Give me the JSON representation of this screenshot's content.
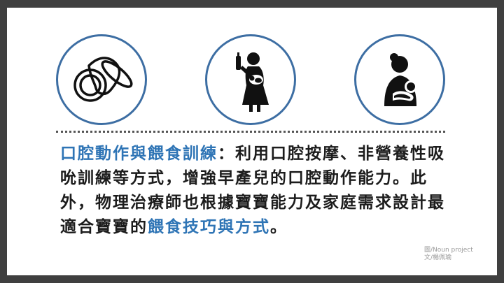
{
  "icons": [
    {
      "name": "pacifier-icon"
    },
    {
      "name": "mother-bottle-feeding-icon"
    },
    {
      "name": "breastfeeding-icon"
    }
  ],
  "paragraph": {
    "highlight_1": "口腔動作與餵食訓練",
    "text_1": "：利用口腔按摩、非營養性吸吮訓練等方式，增強早產兒的口腔動作能力。此外，物理治療師也根據寶寶能力及家庭需求設計最適合寶寶的",
    "highlight_2": "餵食技巧與方式",
    "text_2": "。"
  },
  "credits": {
    "line_1": "圖/Noun project",
    "line_2": "文/楊佩瑜"
  },
  "colors": {
    "accent": "#2e74b5",
    "circle_border": "#3d6ea3",
    "frame": "#3f3f3f"
  }
}
